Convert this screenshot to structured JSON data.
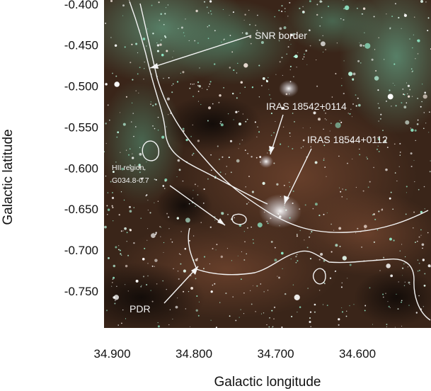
{
  "chart_data": {
    "type": "image",
    "xlabel": "Galactic longitude",
    "ylabel": "Galactic latitude",
    "x_ticks": [
      "34.900",
      "34.800",
      "34.700",
      "34.600"
    ],
    "y_ticks": [
      "-0.400",
      "-0.450",
      "-0.500",
      "-0.550",
      "-0.600",
      "-0.650",
      "-0.700",
      "-0.750"
    ],
    "xlim": [
      34.91,
      34.51
    ],
    "ylim": [
      -0.795,
      -0.395
    ],
    "annotations": [
      {
        "id": "snr",
        "text": "SNR border",
        "x": 34.855,
        "y": -0.466
      },
      {
        "id": "iras1",
        "text": "IRAS 18542+0114",
        "x": 34.715,
        "y": -0.593
      },
      {
        "id": "iras2",
        "text": "IRAS 18544+0112",
        "x": 34.693,
        "y": -0.643
      },
      {
        "id": "hii",
        "text": "HII region",
        "text2": "G034.8-0.7",
        "x": 34.755,
        "y": -0.67
      },
      {
        "id": "pdr",
        "text": "PDR",
        "x": 34.8,
        "y": -0.722
      }
    ]
  }
}
